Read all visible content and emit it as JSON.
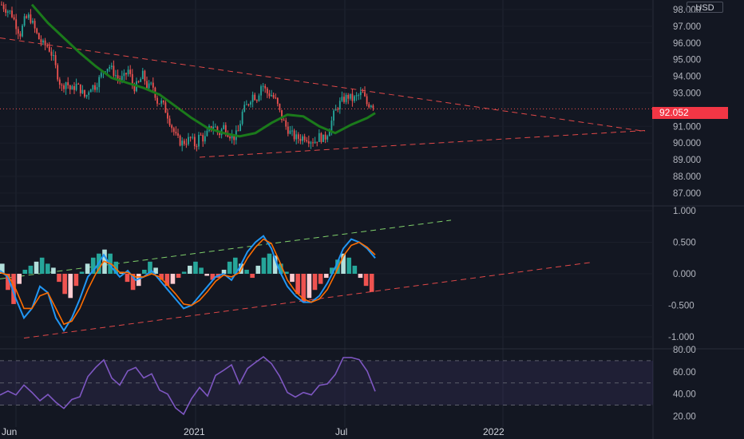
{
  "price_axis": {
    "currency": "USD",
    "last_price": "92.052",
    "main_ticks": [
      "98.000",
      "97.000",
      "96.000",
      "95.000",
      "94.000",
      "93.000",
      "91.000",
      "90.000",
      "89.000",
      "88.000",
      "87.000"
    ],
    "macd_ticks": [
      "1.000",
      "0.500",
      "0.000",
      "-0.500",
      "-1.000"
    ],
    "rsi_ticks": [
      "80.00",
      "60.00",
      "40.00",
      "20.00"
    ]
  },
  "time_axis": {
    "labels": [
      "Jun",
      "2021",
      "Jul",
      "2022"
    ]
  },
  "colors": {
    "background": "#131722",
    "up": "#26a69a",
    "down": "#ef5350",
    "ma": "#1b7a1b",
    "macd": "#2196f3",
    "signal": "#ff6d00",
    "rsi": "#7e57c2",
    "trend_red": "#e04848",
    "trend_green": "#7fcf6a"
  },
  "chart_data": [
    {
      "type": "candlestick",
      "panel": "price",
      "ylim": [
        86.5,
        98.3
      ],
      "close_path_x": [
        2,
        8,
        14,
        20,
        25,
        31,
        37,
        42,
        48,
        54,
        60,
        66,
        72,
        77,
        83,
        89,
        95,
        101,
        107,
        113,
        119,
        125,
        131,
        137,
        143,
        149,
        155,
        161,
        167,
        173,
        179,
        185,
        191,
        197,
        203,
        209,
        215,
        221,
        227,
        233,
        239,
        245,
        250,
        256,
        262,
        268,
        274,
        280,
        286,
        292,
        298,
        304,
        310,
        316,
        322,
        328,
        334,
        340,
        346,
        352,
        358,
        364,
        370,
        376,
        382,
        388,
        394,
        400,
        406,
        412,
        418,
        424,
        430,
        436,
        442,
        448,
        454,
        460,
        466,
        470
      ],
      "close_path_y": [
        98.3,
        98.0,
        97.8,
        97.1,
        96.5,
        97.4,
        97.6,
        97.0,
        96.3,
        95.9,
        95.8,
        95.2,
        94.1,
        93.3,
        93.7,
        93.1,
        93.5,
        93.2,
        92.7,
        93.4,
        93.4,
        93.9,
        94.5,
        94.6,
        94.2,
        93.8,
        93.9,
        94.4,
        93.3,
        93.5,
        94.1,
        93.3,
        93.5,
        92.5,
        92.4,
        91.8,
        91.0,
        90.3,
        90.0,
        90.1,
        90.3,
        89.8,
        90.5,
        90.2,
        90.8,
        91.1,
        90.5,
        91.0,
        90.6,
        90.3,
        90.6,
        91.9,
        92.3,
        92.9,
        92.7,
        93.6,
        93.0,
        92.9,
        92.5,
        91.6,
        91.0,
        90.6,
        90.3,
        90.3,
        90.4,
        90.2,
        90.1,
        90.4,
        90.2,
        90.8,
        91.7,
        92.3,
        92.6,
        92.8,
        92.6,
        92.8,
        93.0,
        92.3,
        92.4,
        92.05
      ],
      "moving_average_x": [
        40,
        60,
        80,
        100,
        120,
        140,
        160,
        180,
        200,
        220,
        240,
        260,
        280,
        300,
        320,
        340,
        360,
        380,
        400,
        420,
        440,
        460,
        470
      ],
      "moving_average_y": [
        98.3,
        97.2,
        96.3,
        95.4,
        94.6,
        93.9,
        93.6,
        93.3,
        92.9,
        92.2,
        91.5,
        90.9,
        90.6,
        90.4,
        90.6,
        91.2,
        91.7,
        91.6,
        91.0,
        90.6,
        91.1,
        91.5,
        91.8
      ],
      "last_value": 92.052
    },
    {
      "type": "histogram+line",
      "panel": "macd",
      "ylim": [
        -1.0,
        1.0
      ],
      "histogram": [
        0.05,
        -0.08,
        -0.15,
        -0.05,
        0.02,
        0.04,
        0.06,
        0.08,
        0.05,
        0.03,
        -0.04,
        -0.1,
        -0.12,
        -0.06,
        0.01,
        0.05,
        0.08,
        0.1,
        0.12,
        0.1,
        0.06,
        0.01,
        -0.04,
        -0.08,
        -0.06,
        0.02,
        0.06,
        0.03,
        -0.03,
        -0.06,
        -0.05,
        -0.02,
        0.01,
        0.04,
        0.06,
        0.03,
        -0.01,
        -0.03,
        -0.02,
        0.02,
        0.06,
        0.08,
        0.05,
        0.02,
        -0.02,
        0.04,
        0.08,
        0.1,
        0.09,
        0.05,
        0.01,
        -0.04,
        -0.1,
        -0.14,
        -0.12,
        -0.08,
        -0.05,
        -0.02,
        0.03,
        0.07,
        0.1,
        0.08,
        0.04,
        -0.02,
        -0.06,
        -0.09
      ],
      "macd_x": [
        0,
        10,
        20,
        30,
        40,
        50,
        60,
        70,
        80,
        90,
        100,
        110,
        120,
        130,
        140,
        150,
        160,
        170,
        180,
        190,
        200,
        210,
        220,
        230,
        240,
        250,
        260,
        270,
        280,
        290,
        300,
        310,
        320,
        330,
        340,
        350,
        360,
        370,
        380,
        390,
        400,
        410,
        420,
        430,
        440,
        450,
        460,
        470
      ],
      "macd_y": [
        0.05,
        -0.05,
        -0.4,
        -0.7,
        -0.55,
        -0.2,
        -0.3,
        -0.7,
        -0.9,
        -0.7,
        -0.4,
        -0.05,
        0.1,
        0.3,
        0.1,
        -0.05,
        0.05,
        -0.1,
        -0.05,
        0.05,
        -0.1,
        -0.25,
        -0.4,
        -0.55,
        -0.5,
        -0.35,
        -0.2,
        -0.05,
        0.0,
        -0.1,
        0.1,
        0.35,
        0.5,
        0.6,
        0.4,
        0.05,
        -0.2,
        -0.35,
        -0.45,
        -0.45,
        -0.35,
        -0.15,
        0.1,
        0.4,
        0.55,
        0.5,
        0.4,
        0.25
      ],
      "signal_x": [
        0,
        10,
        20,
        30,
        40,
        50,
        60,
        70,
        80,
        90,
        100,
        110,
        120,
        130,
        140,
        150,
        160,
        170,
        180,
        190,
        200,
        210,
        220,
        230,
        240,
        250,
        260,
        270,
        280,
        290,
        300,
        310,
        320,
        330,
        340,
        350,
        360,
        370,
        380,
        390,
        400,
        410,
        420,
        430,
        440,
        450,
        460,
        470
      ],
      "signal_y": [
        0.02,
        -0.02,
        -0.25,
        -0.55,
        -0.55,
        -0.35,
        -0.3,
        -0.55,
        -0.8,
        -0.75,
        -0.55,
        -0.25,
        0.0,
        0.2,
        0.15,
        0.02,
        0.02,
        -0.05,
        -0.05,
        0.0,
        -0.05,
        -0.18,
        -0.32,
        -0.48,
        -0.5,
        -0.42,
        -0.28,
        -0.12,
        -0.02,
        -0.05,
        0.02,
        0.25,
        0.42,
        0.55,
        0.48,
        0.2,
        -0.1,
        -0.28,
        -0.4,
        -0.45,
        -0.4,
        -0.25,
        0.0,
        0.28,
        0.45,
        0.5,
        0.42,
        0.3
      ]
    },
    {
      "type": "line",
      "panel": "rsi",
      "ylim": [
        20,
        80
      ],
      "bands": [
        30,
        70
      ],
      "midline": 50,
      "x": [
        0,
        10,
        20,
        30,
        40,
        50,
        60,
        70,
        80,
        90,
        100,
        110,
        120,
        130,
        140,
        150,
        160,
        170,
        180,
        190,
        200,
        210,
        220,
        230,
        240,
        250,
        260,
        270,
        280,
        290,
        300,
        310,
        320,
        330,
        340,
        350,
        360,
        370,
        380,
        390,
        400,
        410,
        420,
        430,
        440,
        450,
        460,
        470
      ],
      "y": [
        40,
        45,
        38,
        50,
        44,
        36,
        42,
        32,
        28,
        35,
        40,
        55,
        62,
        68,
        55,
        48,
        60,
        66,
        52,
        58,
        45,
        40,
        30,
        24,
        35,
        45,
        40,
        55,
        60,
        64,
        50,
        62,
        68,
        72,
        65,
        55,
        42,
        35,
        40,
        38,
        45,
        52,
        60,
        72,
        70,
        68,
        62,
        45
      ]
    }
  ]
}
